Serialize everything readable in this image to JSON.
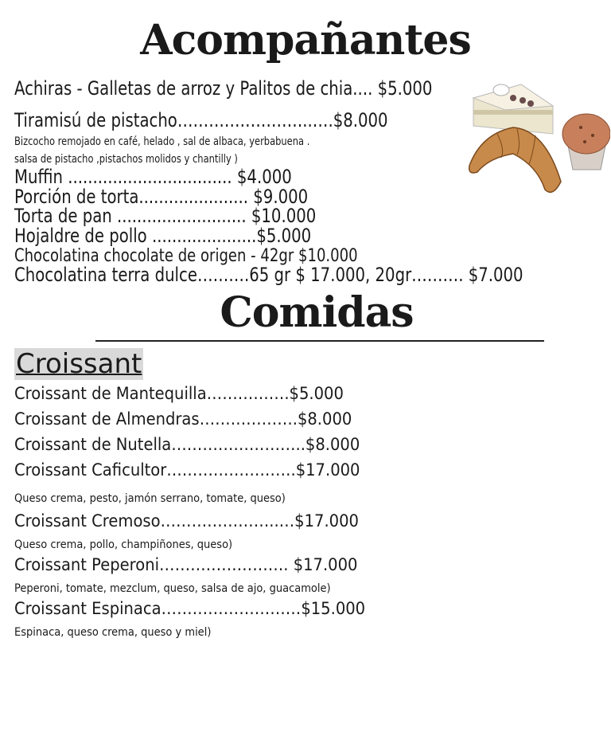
{
  "sections": {
    "acompanantes": {
      "title": "Acompañantes",
      "lines": [
        "Achiras - Galletas de arroz y Palitos de chia.... $5.000",
        "Tiramisú de pistacho……………………..….$8.000",
        "Bizcocho remojado en café, helado , sal de albaca, yerbabuena .",
        "salsa de pistacho ,pistachos molidos y chantilly )",
        "Muffin ................................. $4.000",
        "Porción de torta...................... $9.000",
        "Torta de pan .......................... $10.000",
        "Hojaldre de pollo .....................$5.000",
        "Chocolatina chocolate de origen   - 42gr $10.000",
        "Chocolatina terra dulce……….65 gr $ 17.000, 20gr………. $7.000"
      ]
    },
    "comidas": {
      "title": "Comidas",
      "subsection": "Croissant",
      "lines": [
        "Croissant de Mantequilla…………….$5.000",
        "Croissant de Almendras……………….$8.000",
        "Croissant de Nutella……………………..$8.000",
        "Croissant Caficultor…………………….$17.000",
        "Queso crema, pesto, jamón serrano, tomate, queso)",
        "Croissant Cremoso…………………..…$17.000",
        "Queso crema, pollo, champiñones, queso)",
        "Croissant Peperoni……………………. $17.000",
        "Peperoni, tomate, mezclum, queso, salsa de ajo, guacamole)",
        "Croissant Espinaca………………………$15.000",
        "Espinaca, queso crema, queso y miel)"
      ]
    }
  },
  "illustration": {
    "icon": "pastries-illustration",
    "items": [
      "cake-slice",
      "muffin",
      "croissant"
    ]
  }
}
